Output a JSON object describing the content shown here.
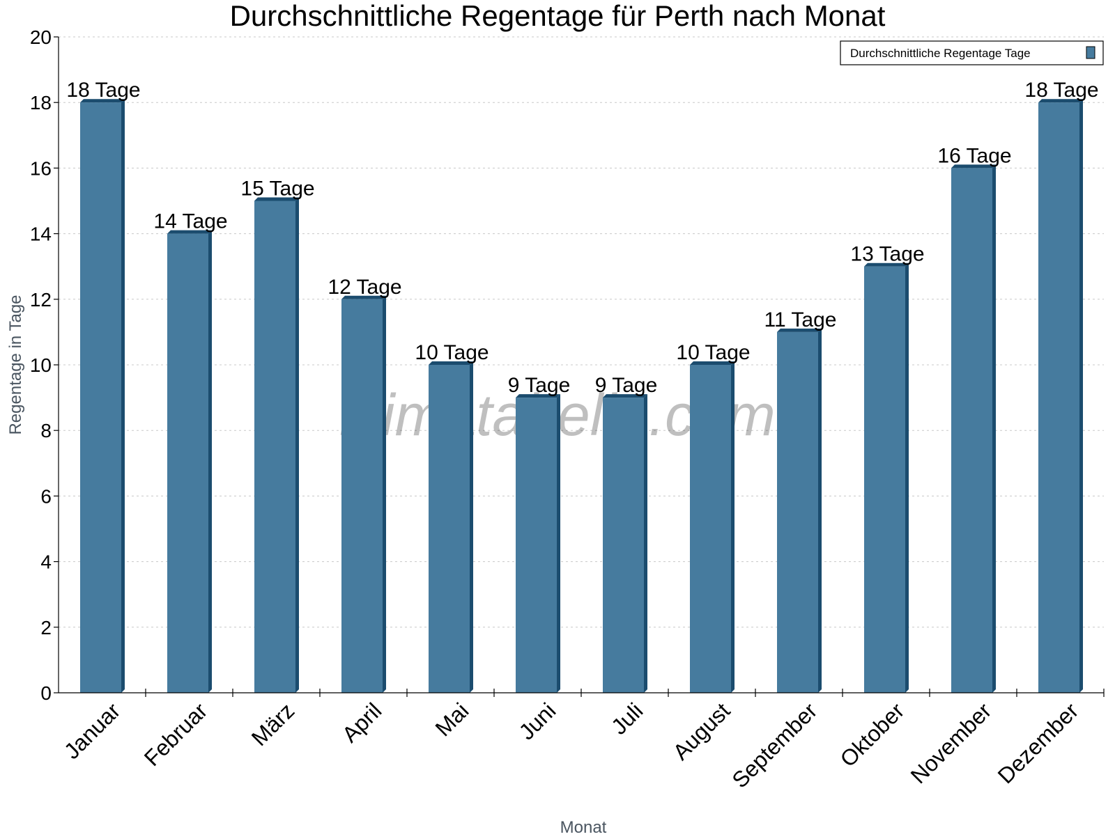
{
  "chart_data": {
    "type": "bar",
    "title": "Durchschnittliche Regentage für Perth nach Monat",
    "xlabel": "Monat",
    "ylabel": "Regentage in Tage",
    "ylim": [
      0,
      20
    ],
    "yticks": [
      "0",
      "2",
      "4",
      "6",
      "8",
      "10",
      "12",
      "14",
      "16",
      "18",
      "20"
    ],
    "grid": true,
    "legend_position": "top-right",
    "watermark": "klimatabelle.com",
    "categories": [
      "Januar",
      "Februar",
      "März",
      "April",
      "Mai",
      "Juni",
      "Juli",
      "August",
      "September",
      "Oktober",
      "November",
      "Dezember"
    ],
    "series": [
      {
        "name": "Durchschnittliche Regentage Tage",
        "values": [
          18,
          14,
          15,
          12,
          10,
          9,
          9,
          10,
          11,
          13,
          16,
          18
        ],
        "labels": [
          "18 Tage",
          "14 Tage",
          "15 Tage",
          "12 Tage",
          "10 Tage",
          "9 Tage",
          "9 Tage",
          "10 Tage",
          "11 Tage",
          "13 Tage",
          "16 Tage",
          "18 Tage"
        ],
        "color": "#467b9e",
        "side_color": "#1b4c6e"
      }
    ]
  }
}
